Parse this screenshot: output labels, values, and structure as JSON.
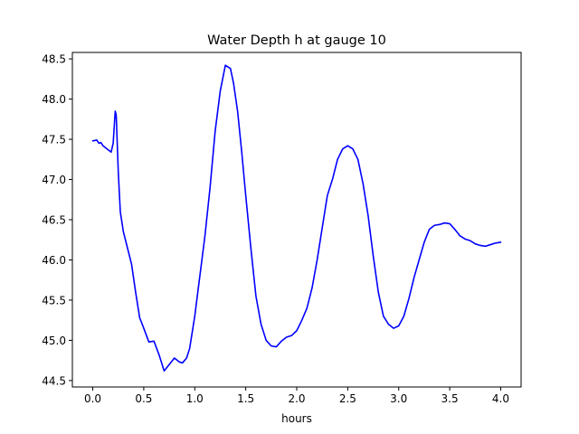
{
  "chart_data": {
    "type": "line",
    "title": "Water Depth h at gauge 10",
    "xlabel": "hours",
    "ylabel": "",
    "xlim": [
      -0.2,
      4.2
    ],
    "ylim": [
      44.42,
      48.58
    ],
    "xticks": [
      "0.0",
      "0.5",
      "1.0",
      "1.5",
      "2.0",
      "2.5",
      "3.0",
      "3.5",
      "4.0"
    ],
    "yticks": [
      "44.5",
      "45.0",
      "45.5",
      "46.0",
      "46.5",
      "47.0",
      "47.5",
      "48.0",
      "48.5"
    ],
    "grid": false,
    "series": [
      {
        "color": "#0000ff",
        "x": [
          0.0,
          0.04,
          0.06,
          0.08,
          0.1,
          0.14,
          0.18,
          0.2,
          0.22,
          0.23,
          0.25,
          0.27,
          0.3,
          0.34,
          0.38,
          0.42,
          0.46,
          0.5,
          0.55,
          0.6,
          0.65,
          0.7,
          0.75,
          0.8,
          0.85,
          0.88,
          0.92,
          0.95,
          1.0,
          1.05,
          1.1,
          1.15,
          1.2,
          1.25,
          1.3,
          1.35,
          1.38,
          1.42,
          1.46,
          1.5,
          1.55,
          1.6,
          1.65,
          1.7,
          1.75,
          1.8,
          1.85,
          1.9,
          1.95,
          2.0,
          2.05,
          2.1,
          2.15,
          2.2,
          2.25,
          2.3,
          2.35,
          2.4,
          2.45,
          2.5,
          2.55,
          2.6,
          2.65,
          2.7,
          2.75,
          2.8,
          2.85,
          2.9,
          2.95,
          3.0,
          3.05,
          3.1,
          3.15,
          3.2,
          3.25,
          3.3,
          3.35,
          3.4,
          3.45,
          3.5,
          3.55,
          3.6,
          3.65,
          3.7,
          3.75,
          3.8,
          3.85,
          3.9,
          3.95,
          4.0
        ],
        "y": [
          47.48,
          47.49,
          47.45,
          47.46,
          47.42,
          47.38,
          47.34,
          47.45,
          47.85,
          47.8,
          47.1,
          46.6,
          46.35,
          46.15,
          45.95,
          45.6,
          45.28,
          45.15,
          44.98,
          44.99,
          44.82,
          44.62,
          44.7,
          44.78,
          44.73,
          44.72,
          44.78,
          44.9,
          45.3,
          45.8,
          46.3,
          46.9,
          47.6,
          48.1,
          48.42,
          48.38,
          48.2,
          47.85,
          47.35,
          46.8,
          46.15,
          45.55,
          45.2,
          45.0,
          44.93,
          44.92,
          44.99,
          45.04,
          45.06,
          45.12,
          45.25,
          45.4,
          45.65,
          46.0,
          46.4,
          46.8,
          47.0,
          47.25,
          47.38,
          47.42,
          47.38,
          47.25,
          46.95,
          46.55,
          46.05,
          45.6,
          45.3,
          45.2,
          45.15,
          45.18,
          45.3,
          45.52,
          45.78,
          46.0,
          46.22,
          46.38,
          46.43,
          46.44,
          46.46,
          46.45,
          46.38,
          46.3,
          46.26,
          46.24,
          46.2,
          46.18,
          46.17,
          46.19,
          46.21,
          46.22
        ]
      }
    ]
  }
}
